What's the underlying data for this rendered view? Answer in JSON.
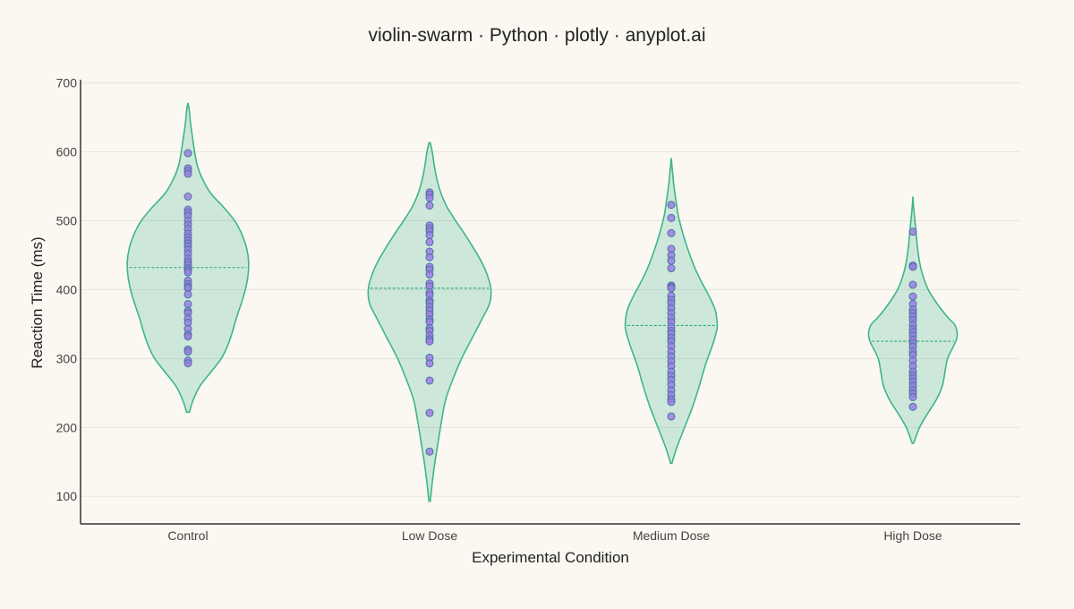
{
  "chart_data": {
    "type": "violin-swarm",
    "title": "violin-swarm · Python · plotly · anyplot.ai",
    "xlabel": "Experimental Condition",
    "ylabel": "Reaction Time (ms)",
    "categories": [
      "Control",
      "Low Dose",
      "Medium Dose",
      "High Dose"
    ],
    "yticks": [
      100,
      200,
      300,
      400,
      500,
      600,
      700
    ],
    "ylim": [
      60,
      702
    ],
    "grid": "horizontal",
    "legend": "none",
    "colors": {
      "background": "#FAF8F1",
      "violin_fill": "#009E73",
      "violin_line": "#3FB58A",
      "point_fill": "#9B7FE0",
      "point_edge": "#4B70A8",
      "median_line": "#2FA67E",
      "grid": "#E7E4DC",
      "axis": "#333333",
      "text": "#222222",
      "tick_text": "#444444"
    },
    "violins": [
      {
        "category": "Control",
        "median": 432,
        "min": 222,
        "max": 671,
        "profile": [
          [
            222,
            2
          ],
          [
            240,
            8
          ],
          [
            260,
            18
          ],
          [
            280,
            34
          ],
          [
            300,
            50
          ],
          [
            320,
            60
          ],
          [
            340,
            67
          ],
          [
            360,
            73
          ],
          [
            380,
            80
          ],
          [
            400,
            86
          ],
          [
            420,
            90
          ],
          [
            440,
            91
          ],
          [
            460,
            88
          ],
          [
            480,
            81
          ],
          [
            500,
            70
          ],
          [
            520,
            53
          ],
          [
            540,
            34
          ],
          [
            560,
            22
          ],
          [
            580,
            14
          ],
          [
            600,
            10
          ],
          [
            620,
            7
          ],
          [
            640,
            4
          ],
          [
            660,
            2
          ],
          [
            671,
            0
          ]
        ],
        "points": [
          598,
          576,
          572,
          568,
          535,
          516,
          512,
          507,
          500,
          494,
          488,
          481,
          476,
          471,
          467,
          463,
          458,
          452,
          445,
          440,
          436,
          431,
          428,
          425,
          413,
          408,
          404,
          402,
          393,
          379,
          369,
          366,
          358,
          352,
          343,
          335,
          332,
          313,
          310,
          297,
          293
        ]
      },
      {
        "category": "Low Dose",
        "median": 402,
        "min": 93,
        "max": 613,
        "profile": [
          [
            93,
            1
          ],
          [
            120,
            4
          ],
          [
            150,
            8
          ],
          [
            180,
            13
          ],
          [
            210,
            18
          ],
          [
            240,
            24
          ],
          [
            270,
            35
          ],
          [
            300,
            48
          ],
          [
            330,
            64
          ],
          [
            360,
            80
          ],
          [
            380,
            90
          ],
          [
            400,
            92
          ],
          [
            420,
            87
          ],
          [
            440,
            78
          ],
          [
            460,
            66
          ],
          [
            480,
            53
          ],
          [
            500,
            39
          ],
          [
            520,
            26
          ],
          [
            540,
            17
          ],
          [
            560,
            11
          ],
          [
            580,
            7
          ],
          [
            600,
            4
          ],
          [
            613,
            1
          ]
        ],
        "points": [
          541,
          538,
          533,
          522,
          493,
          489,
          485,
          479,
          469,
          455,
          447,
          433,
          429,
          422,
          409,
          405,
          396,
          392,
          384,
          381,
          375,
          370,
          364,
          357,
          353,
          344,
          340,
          333,
          328,
          325,
          301,
          293,
          268,
          221,
          165
        ]
      },
      {
        "category": "Medium Dose",
        "median": 348,
        "min": 148,
        "max": 591,
        "profile": [
          [
            148,
            1
          ],
          [
            170,
            8
          ],
          [
            200,
            20
          ],
          [
            230,
            32
          ],
          [
            260,
            42
          ],
          [
            290,
            51
          ],
          [
            320,
            62
          ],
          [
            340,
            68
          ],
          [
            350,
            69
          ],
          [
            370,
            66
          ],
          [
            390,
            57
          ],
          [
            410,
            46
          ],
          [
            430,
            36
          ],
          [
            450,
            28
          ],
          [
            470,
            21
          ],
          [
            490,
            15
          ],
          [
            510,
            10
          ],
          [
            530,
            7
          ],
          [
            550,
            4
          ],
          [
            570,
            2
          ],
          [
            591,
            0
          ]
        ],
        "points": [
          523,
          504,
          482,
          459,
          450,
          442,
          431,
          406,
          404,
          402,
          391,
          385,
          380,
          373,
          366,
          359,
          353,
          346,
          340,
          336,
          330,
          325,
          318,
          310,
          303,
          296,
          289,
          281,
          275,
          269,
          262,
          254,
          247,
          241,
          237,
          216
        ]
      },
      {
        "category": "High Dose",
        "median": 325,
        "min": 177,
        "max": 535,
        "profile": [
          [
            177,
            1
          ],
          [
            200,
            10
          ],
          [
            220,
            22
          ],
          [
            240,
            35
          ],
          [
            260,
            44
          ],
          [
            280,
            48
          ],
          [
            300,
            52
          ],
          [
            320,
            62
          ],
          [
            330,
            66
          ],
          [
            340,
            66
          ],
          [
            350,
            62
          ],
          [
            360,
            52
          ],
          [
            380,
            36
          ],
          [
            400,
            23
          ],
          [
            420,
            15
          ],
          [
            440,
            10
          ],
          [
            460,
            7
          ],
          [
            480,
            5
          ],
          [
            500,
            3
          ],
          [
            520,
            1
          ],
          [
            535,
            0
          ]
        ],
        "points": [
          484,
          435,
          433,
          407,
          390,
          379,
          371,
          366,
          361,
          356,
          349,
          343,
          338,
          333,
          327,
          322,
          317,
          310,
          305,
          297,
          289,
          281,
          276,
          271,
          266,
          260,
          254,
          249,
          244,
          230
        ]
      }
    ]
  }
}
